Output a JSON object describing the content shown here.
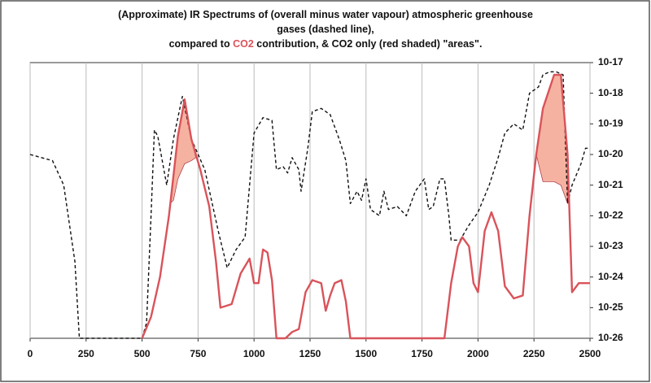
{
  "chart_data": {
    "type": "line",
    "title_lines": [
      [
        "(Approximate) IR Spectrums of (overall minus water vapour) atmospheric greenhouse"
      ],
      [
        "gases (dashed line),"
      ],
      [
        "compared to ",
        "CO2",
        " contribution, & CO2 only (red shaded) \"areas\"."
      ]
    ],
    "title_highlight_color": "#d9535a",
    "log_y": true,
    "xlim": [
      0,
      2500
    ],
    "xticks": [
      0,
      250,
      500,
      750,
      1000,
      1250,
      1500,
      1750,
      2000,
      2250,
      2500
    ],
    "ylim": [
      1e-26,
      1e-17
    ],
    "yticks": [
      {
        "value": 1e-17,
        "label": "10-17"
      },
      {
        "value": 1e-18,
        "label": "10-18"
      },
      {
        "value": 1e-19,
        "label": "10-19"
      },
      {
        "value": 1e-20,
        "label": "10-20"
      },
      {
        "value": 1e-21,
        "label": "10-21"
      },
      {
        "value": 1e-22,
        "label": "10-22"
      },
      {
        "value": 1e-23,
        "label": "10-23"
      },
      {
        "value": 1e-24,
        "label": "10-24"
      },
      {
        "value": 1e-25,
        "label": "10-25"
      },
      {
        "value": 1e-26,
        "label": "10-26"
      }
    ],
    "grid_x": true,
    "series": [
      {
        "color": "#111111",
        "dashed": true,
        "x": [
          0,
          100,
          150,
          200,
          220,
          500,
          520,
          540,
          555,
          570,
          590,
          610,
          640,
          680,
          720,
          780,
          840,
          880,
          920,
          960,
          980,
          1000,
          1040,
          1080,
          1100,
          1130,
          1150,
          1170,
          1200,
          1210,
          1240,
          1260,
          1300,
          1340,
          1380,
          1410,
          1430,
          1460,
          1480,
          1500,
          1520,
          1560,
          1580,
          1600,
          1640,
          1680,
          1720,
          1760,
          1780,
          1800,
          1830,
          1850,
          1870,
          1880,
          1920,
          1960,
          2000,
          2050,
          2090,
          2120,
          2160,
          2200,
          2230,
          2270,
          2290,
          2320,
          2350,
          2380,
          2400,
          2420,
          2460,
          2480,
          2500
        ],
        "values": [
          1e-20,
          6.3e-21,
          1e-21,
          3.2e-24,
          1e-26,
          1e-26,
          3.2e-26,
          1e-22,
          6.3e-20,
          4e-20,
          6.3e-21,
          1e-21,
          3.2e-20,
          7.9e-19,
          3.2e-20,
          3.2e-21,
          3.2e-23,
          2e-24,
          7.9e-24,
          2e-23,
          1e-21,
          5e-20,
          1.6e-19,
          1.3e-19,
          3.2e-21,
          4e-21,
          2.5e-21,
          7.9e-21,
          3.2e-21,
          6.3e-22,
          1.6e-20,
          2.5e-19,
          3.2e-19,
          2e-19,
          3.2e-20,
          6.3e-21,
          2.5e-22,
          6.3e-22,
          3.2e-22,
          1.6e-21,
          1.6e-22,
          1e-22,
          6.3e-22,
          1.6e-22,
          2e-22,
          1e-22,
          6.3e-22,
          1.6e-21,
          1.6e-22,
          2e-22,
          1.6e-21,
          1.6e-21,
          1e-22,
          1.6e-23,
          1.6e-23,
          5e-23,
          1.3e-22,
          1e-21,
          7.9e-21,
          5e-20,
          1e-19,
          6.3e-20,
          1e-18,
          1.6e-18,
          4e-18,
          5e-18,
          5e-18,
          4e-18,
          2.5e-22,
          1e-21,
          5e-21,
          1.6e-20,
          1.6e-20
        ]
      },
      {
        "color": "#d9535a",
        "dashed": false,
        "x": [
          500,
          540,
          580,
          620,
          660,
          690,
          720,
          760,
          800,
          830,
          850,
          900,
          940,
          980,
          1000,
          1020,
          1040,
          1060,
          1080,
          1100,
          1140,
          1170,
          1200,
          1230,
          1260,
          1300,
          1320,
          1340,
          1360,
          1390,
          1410,
          1430,
          1850,
          1880,
          1910,
          1930,
          1960,
          1980,
          2000,
          2030,
          2060,
          2090,
          2120,
          2160,
          2200,
          2230,
          2260,
          2290,
          2340,
          2370,
          2400,
          2420,
          2450,
          2500
        ],
        "values": [
          1e-26,
          5e-26,
          1e-24,
          1e-22,
          4e-20,
          6.3e-19,
          3.2e-20,
          3.2e-21,
          2e-22,
          3.2e-24,
          1e-25,
          1.3e-25,
          1.3e-24,
          4e-24,
          6.3e-25,
          6.3e-25,
          7.9e-24,
          6.3e-24,
          7.9e-25,
          1e-26,
          1e-26,
          1.6e-26,
          2e-26,
          3.2e-25,
          7.9e-25,
          6.3e-25,
          7.9e-26,
          2.5e-25,
          6.3e-25,
          7.9e-25,
          1.6e-25,
          1e-26,
          1e-26,
          6.3e-25,
          1e-23,
          2e-23,
          1e-23,
          6.3e-25,
          3.2e-25,
          3.2e-23,
          1.3e-22,
          3.2e-23,
          5e-25,
          2e-25,
          2.5e-25,
          1e-22,
          1e-20,
          3.2e-19,
          4e-18,
          4e-18,
          1e-20,
          3.2e-25,
          6.3e-25,
          6.3e-25
        ]
      }
    ],
    "shaded_areas": [
      {
        "color": "#f4a58f",
        "x": [
          625,
          640,
          660,
          690,
          720,
          740
        ],
        "upper": [
          2.5e-22,
          2.5e-21,
          4e-20,
          6.3e-19,
          3.2e-20,
          7.9e-21
        ],
        "lower": [
          2.5e-22,
          3.2e-22,
          1.6e-21,
          5e-21,
          6.3e-21,
          7.9e-21
        ]
      },
      {
        "color": "#f4a58f",
        "x": [
          2260,
          2290,
          2340,
          2370,
          2400
        ],
        "upper": [
          1e-20,
          3.2e-19,
          4e-18,
          4e-18,
          1e-20
        ],
        "lower": [
          1e-20,
          1.3e-21,
          1.3e-21,
          1e-21,
          2.5e-22
        ]
      }
    ]
  }
}
